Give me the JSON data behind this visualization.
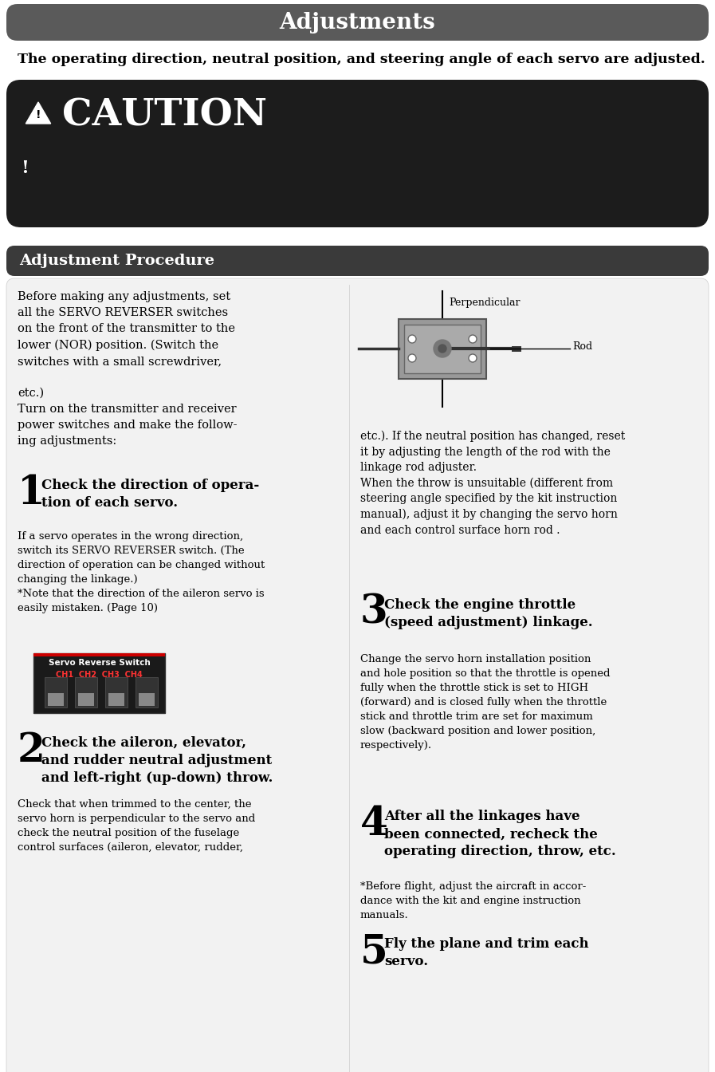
{
  "title": "Adjustments",
  "subtitle": "The operating direction, neutral position, and steering angle of each servo are adjusted.",
  "title_bg": "#5a5a5a",
  "title_fg": "#ffffff",
  "caution_bg": "#1c1c1c",
  "caution_fg": "#ffffff",
  "section_bg": "#3a3a3a",
  "section_fg": "#ffffff",
  "section_title": "Adjustment Procedure",
  "content_bg": "#f2f2f2",
  "page_bg": "#ffffff",
  "intro_text": "Before making any adjustments, set\nall the SERVO REVERSER switches\non the front of the transmitter to the\nlower (NOR) position. (Switch the\nswitches with a small screwdriver,\n\netc.)\nTurn on the transmitter and receiver\npower switches and make the follow-\ning adjustments:",
  "right_top_text": "etc.). If the neutral position has changed, reset\nit by adjusting the length of the rod with the\nlinkage rod adjuster.\nWhen the throw is unsuitable (different from\nsteering angle specified by the kit instruction\nmanual), adjust it by changing the servo horn\nand each control surface horn rod .",
  "step1_num": "1",
  "step1_title": "Check the direction of opera-\ntion of each servo.",
  "step1_body": "If a servo operates in the wrong direction,\nswitch its SERVO REVERSER switch. (The\ndirection of operation can be changed without\nchanging the linkage.)\n*Note that the direction of the aileron servo is\neasily mistaken. (Page 10)",
  "step2_num": "2",
  "step2_title": "Check the aileron, elevator,\nand rudder neutral adjustment\nand left-right (up-down) throw.",
  "step2_body": "Check that when trimmed to the center, the\nservo horn is perpendicular to the servo and\ncheck the neutral position of the fuselage\ncontrol surfaces (aileron, elevator, rudder,",
  "step3_num": "3",
  "step3_title": "Check the engine throttle\n(speed adjustment) linkage.",
  "step3_body": "Change the servo horn installation position\nand hole position so that the throttle is opened\nfully when the throttle stick is set to HIGH\n(forward) and is closed fully when the throttle\nstick and throttle trim are set for maximum\nslow (backward position and lower position,\nrespectively).",
  "step4_num": "4",
  "step4_title": "After all the linkages have\nbeen connected, recheck the\noperating direction, throw, etc.",
  "step4_note": "*Before flight, adjust the aircraft in accor-\ndance with the kit and engine instruction\nmanuals.",
  "step5_num": "5",
  "step5_title": "Fly the plane and trim each\nservo.",
  "perp_label": "Perpendicular",
  "rod_label": "Rod"
}
